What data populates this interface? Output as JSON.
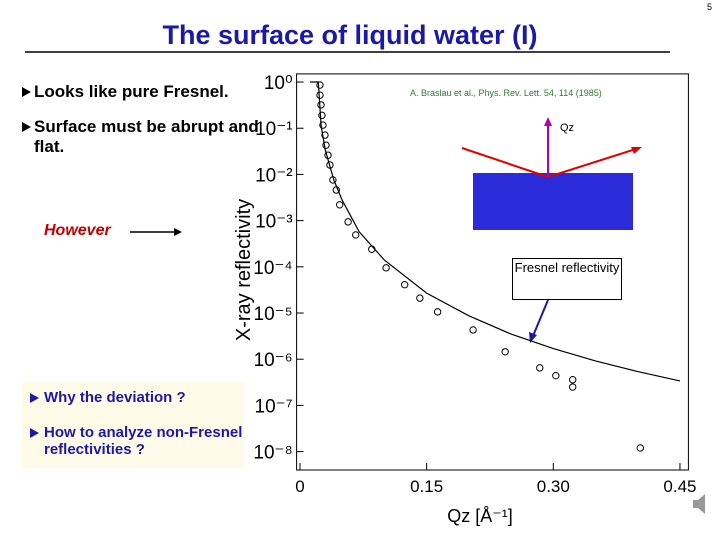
{
  "page_number": "5",
  "title": "The surface of liquid water (I)",
  "bullets": [
    "Looks like pure Fresnel.",
    "Surface must be abrupt and flat."
  ],
  "however": "However",
  "questions": [
    "Why the deviation ?",
    "How to analyze non-Fresnel reflectivities ?"
  ],
  "reference": "A. Braslau et al., Phys. Rev. Lett. 54, 114 (1985)",
  "inset": {
    "qz_label": "Qz",
    "callout": "Fresnel reflectivity"
  },
  "chart_data": {
    "type": "scatter",
    "x_label": "Qz [Å⁻¹]",
    "y_label": "X-ray reflectivity",
    "log_y": true,
    "xlim": [
      -0.004,
      0.46
    ],
    "ylim": [
      4e-09,
      1.5
    ],
    "xticks": [
      0,
      0.15,
      {
        "value": 0.3,
        "label": "0.30"
      },
      0.45
    ],
    "yticks": [
      {
        "value": 1,
        "label": "10⁰"
      },
      {
        "value": 0.1,
        "label": "10⁻¹"
      },
      {
        "value": 0.01,
        "label": "10⁻²"
      },
      {
        "value": 0.001,
        "label": "10⁻³"
      },
      {
        "value": 0.0001,
        "label": "10⁻⁴"
      },
      {
        "value": 1e-05,
        "label": "10⁻⁵"
      },
      {
        "value": 1e-06,
        "label": "10⁻⁶"
      },
      {
        "value": 1e-07,
        "label": "10⁻⁷"
      },
      {
        "value": 1e-08,
        "label": "10⁻⁸"
      }
    ],
    "points": {
      "color": "#000000",
      "x": [
        0.0237,
        0.0237,
        0.0249,
        0.026,
        0.0272,
        0.0296,
        0.0308,
        0.0332,
        0.0355,
        0.039,
        0.043,
        0.047,
        0.057,
        0.066,
        0.085,
        0.102,
        0.124,
        0.142,
        0.163,
        0.205,
        0.243,
        0.284,
        0.303,
        0.323,
        0.323,
        0.403
      ],
      "values": [
        0.86,
        0.52,
        0.32,
        0.19,
        0.117,
        0.071,
        0.043,
        0.026,
        0.016,
        0.0076,
        0.0046,
        0.0022,
        0.00094,
        0.00049,
        0.00024,
        9.5e-05,
        4.1e-05,
        2.1e-05,
        1.06e-05,
        4.3e-06,
        1.45e-06,
        6.5e-07,
        4.4e-07,
        3.6e-07,
        2.5e-07,
        1.2e-08
      ]
    },
    "curve": {
      "color": "#000000",
      "x": [
        0.012,
        0.0217,
        0.025,
        0.03,
        0.04,
        0.05,
        0.07,
        0.1,
        0.15,
        0.2,
        0.25,
        0.3,
        0.35,
        0.4,
        0.45
      ],
      "values": [
        1,
        1,
        0.113,
        0.0336,
        0.0076,
        0.00277,
        0.000577,
        0.00014,
        2.7e-05,
        8.7e-06,
        3.5e-06,
        1.7e-06,
        9.2e-07,
        5.4e-07,
        3.4e-07
      ]
    }
  }
}
